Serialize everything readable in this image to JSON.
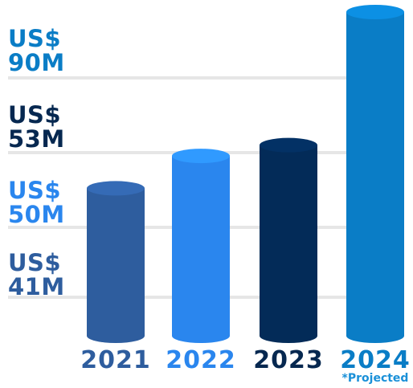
{
  "chart_data": {
    "type": "bar",
    "categories": [
      "2021",
      "2022",
      "2023",
      "2024"
    ],
    "values": [
      41,
      50,
      53,
      90
    ],
    "value_labels": [
      "US$ 41M",
      "US$ 50M",
      "US$ 53M",
      "US$ 90M"
    ],
    "colors": [
      "#2e5d9e",
      "#2a86ee",
      "#032b58",
      "#0a7dc6"
    ],
    "label_colors": [
      "#2e5d9e",
      "#2a86ee",
      "#062850",
      "#0a7dc6"
    ],
    "note": "*Projected"
  }
}
